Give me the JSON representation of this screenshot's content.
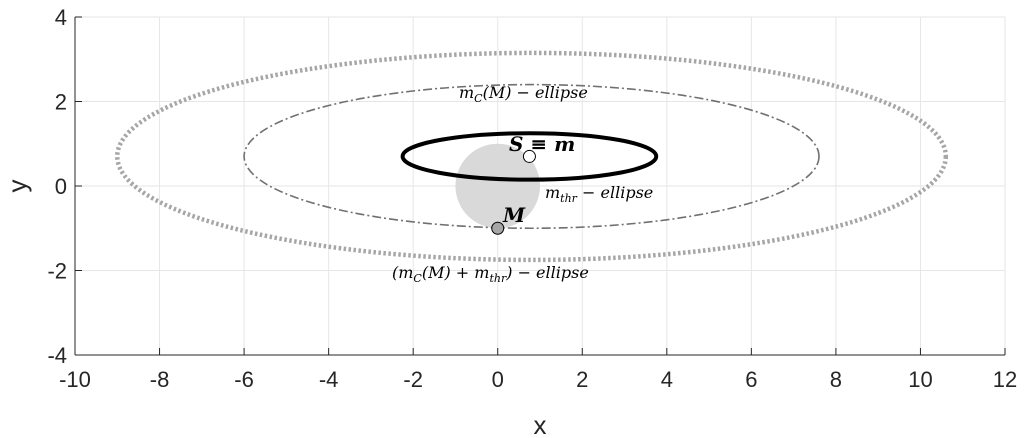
{
  "chart_data": {
    "type": "scatter",
    "xlabel": "x",
    "ylabel": "y",
    "xlim": [
      -10,
      12
    ],
    "ylim": [
      -4,
      4
    ],
    "xticks": [
      -10,
      -8,
      -6,
      -4,
      -2,
      0,
      2,
      4,
      6,
      8,
      10,
      12
    ],
    "yticks": [
      -4,
      -2,
      0,
      2,
      4
    ],
    "grid": true,
    "ellipses": [
      {
        "name": "(m_C(M) + m_thr) − ellipse",
        "cx": 0.8,
        "cy": 0.7,
        "rx": 9.8,
        "ry": 2.45,
        "style": "dotted-thick",
        "color": "#a6a6a6"
      },
      {
        "name": "m_C(M) − ellipse",
        "cx": 0.8,
        "cy": 0.7,
        "rx": 6.8,
        "ry": 1.7,
        "style": "dash-dot",
        "color": "#707070"
      },
      {
        "name": "m_thr − ellipse",
        "cx": 0.75,
        "cy": 0.7,
        "rx": 3.0,
        "ry": 0.55,
        "style": "solid-thick",
        "color": "#000000"
      }
    ],
    "disk": {
      "cx": 0,
      "cy": 0,
      "r": 1.0,
      "color": "#d9d9d9"
    },
    "points": [
      {
        "label": "S ≡ m",
        "x": 0.75,
        "y": 0.7,
        "fill": "#ffffff"
      },
      {
        "label": "M",
        "x": 0,
        "y": -1,
        "fill": "#a6a6a6"
      }
    ],
    "annotations": {
      "mc_ellipse": {
        "main": "m",
        "sub": "C",
        "rest": "(M) − ellipse"
      },
      "sm_label": "S ≡ m",
      "mthr_ellipse": {
        "main": "m",
        "sub": "thr",
        "rest": " − ellipse"
      },
      "m_label": "M",
      "sum_ellipse": {
        "pre": "(m",
        "sub1": "C",
        "mid": "(M) + m",
        "sub2": "thr",
        "rest": ") − ellipse"
      }
    }
  }
}
